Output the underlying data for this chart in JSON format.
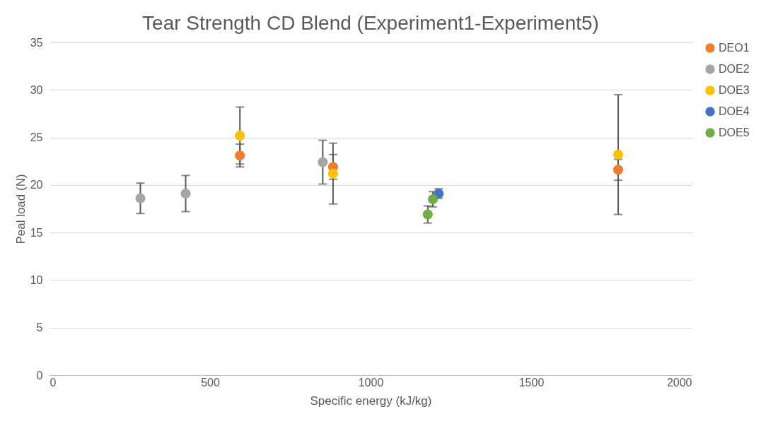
{
  "chart_data": {
    "type": "scatter",
    "title": "Tear Strength CD Blend (Experiment1-Experiment5)",
    "xlabel": "Specific energy (kJ/kg)",
    "ylabel": "Peal load (N)",
    "xlim": [
      0,
      2000
    ],
    "xticks": [
      0,
      500,
      1000,
      1500,
      2000
    ],
    "ylim": [
      0,
      35
    ],
    "yticks": [
      0,
      5,
      10,
      15,
      20,
      25,
      30,
      35
    ],
    "grid": "y",
    "legend": "right",
    "marker": "circle",
    "series": [
      {
        "name": "DEO1",
        "color": "#ed7d31",
        "x": [
          593,
          883,
          1771
        ],
        "values": [
          23.1,
          21.9,
          21.6
        ],
        "errors": [
          1.2,
          1.3,
          1.1
        ]
      },
      {
        "name": "DOE2",
        "color": "#a5a5a5",
        "x": [
          283,
          424,
          851
        ],
        "values": [
          18.6,
          19.1,
          22.4
        ],
        "errors": [
          1.6,
          1.9,
          2.3
        ]
      },
      {
        "name": "DOE3",
        "color": "#ffc000",
        "x": [
          593,
          883,
          1771
        ],
        "values": [
          25.2,
          21.2,
          23.2
        ],
        "errors": [
          3.0,
          3.2,
          6.3
        ]
      },
      {
        "name": "DOE4",
        "color": "#4472c4",
        "x": [
          1212
        ],
        "values": [
          19.1
        ],
        "errors": [
          0.5
        ]
      },
      {
        "name": "DOE5",
        "color": "#70ad47",
        "x": [
          1178,
          1194
        ],
        "values": [
          16.9,
          18.5
        ],
        "errors": [
          0.9,
          0.8
        ]
      }
    ]
  }
}
